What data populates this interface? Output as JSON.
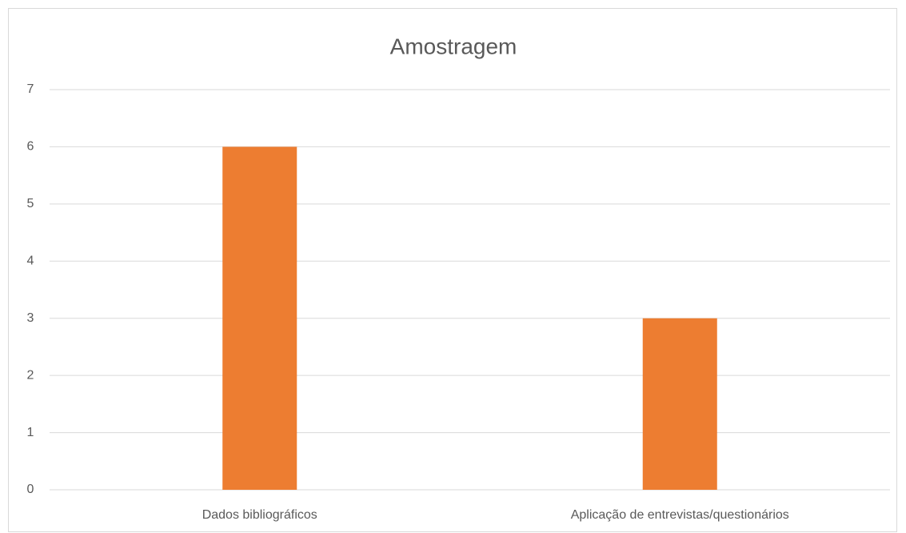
{
  "chart_data": {
    "type": "bar",
    "title": "Amostragem",
    "categories": [
      "Dados bibliográficos",
      "Aplicação de entrevistas/questionários"
    ],
    "values": [
      6,
      3
    ],
    "color": "#ed7d31",
    "ylim": [
      0,
      7
    ],
    "yticks": [
      0,
      1,
      2,
      3,
      4,
      5,
      6,
      7
    ],
    "grid": true
  }
}
